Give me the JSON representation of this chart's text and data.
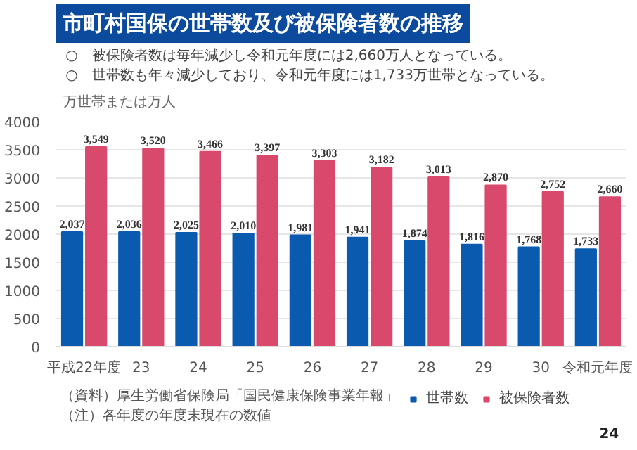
{
  "chart_data": {
    "type": "bar",
    "title": "市町村国保の世帯数及び被保険者数の推移",
    "subtitle": "○　被保険者数は毎年減少し令和元年度には2,660万人となっている。\n○　世帯数も年々減少しており、令和元年度には1,733万世帯となっている。",
    "ylabel": "万世帯または万人",
    "categories": [
      "平成22年度",
      "23",
      "24",
      "25",
      "26",
      "27",
      "28",
      "29",
      "30",
      "令和元年度"
    ],
    "series": [
      {
        "name": "世帯数",
        "color": "#0a5bb0",
        "values": [
          2037,
          2036,
          2025,
          2010,
          1981,
          1941,
          1874,
          1816,
          1768,
          1733
        ],
        "value_labels": [
          "2,037",
          "2,036",
          "2,025",
          "2,010",
          "1,981",
          "1,941",
          "1,874",
          "1,816",
          "1,768",
          "1,733"
        ]
      },
      {
        "name": "被保険者数",
        "color": "#d9496c",
        "values": [
          3549,
          3520,
          3466,
          3397,
          3303,
          3182,
          3013,
          2870,
          2752,
          2660
        ],
        "value_labels": [
          "3,549",
          "3,520",
          "3,466",
          "3,397",
          "3,303",
          "3,182",
          "3,013",
          "2,870",
          "2,752",
          "2,660"
        ]
      }
    ],
    "ylim": [
      0,
      4000
    ],
    "yticks": [
      0,
      500,
      1000,
      1500,
      2000,
      2500,
      3000,
      3500,
      4000
    ],
    "grid": "y",
    "legend": "bottom",
    "annotations": [
      "（資料）厚生労働省保険局「国民健康保険事業年報」",
      "（注）各年度の年度末現在の数値",
      "24"
    ]
  }
}
